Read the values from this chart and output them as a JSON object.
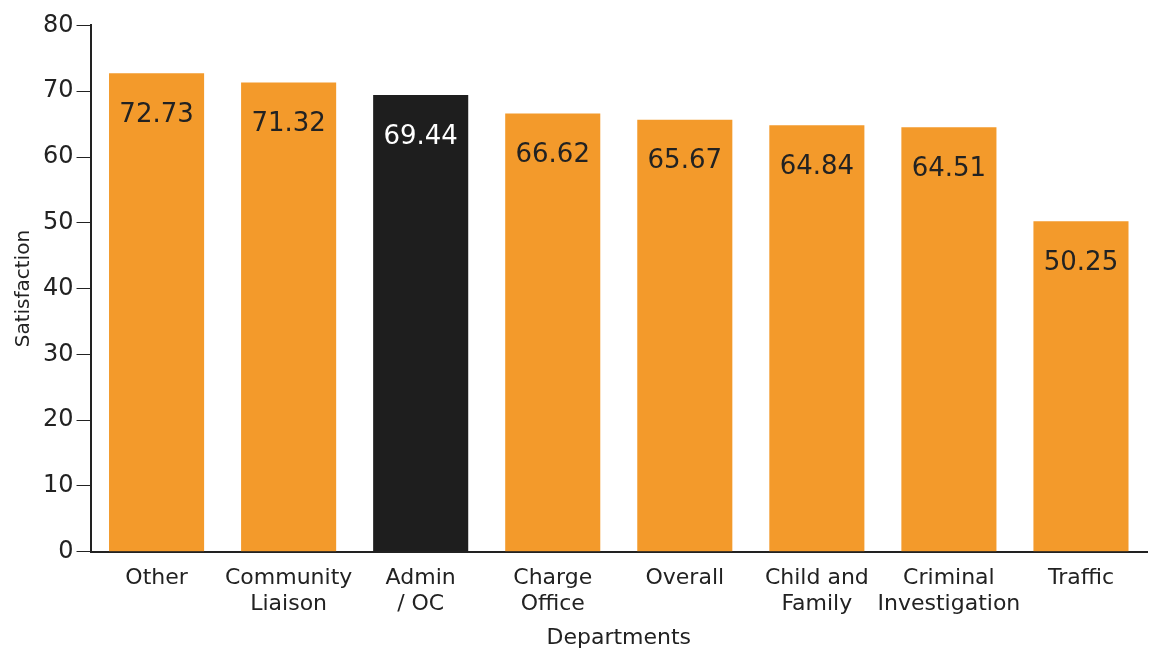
{
  "chart_data": {
    "type": "bar",
    "xlabel": "Departments",
    "ylabel": "Satisfaction",
    "categories": [
      "Other",
      "Community\nLiaison",
      "Admin\n/ OC",
      "Charge\nOffice",
      "Overall",
      "Child and\nFamily",
      "Criminal\nInvestigation",
      "Traffic"
    ],
    "values": [
      72.73,
      71.32,
      69.44,
      66.62,
      65.67,
      64.84,
      64.51,
      50.25
    ],
    "colors": [
      "#f39a2b",
      "#f39a2b",
      "#1e1e1e",
      "#f39a2b",
      "#f39a2b",
      "#f39a2b",
      "#f39a2b",
      "#f39a2b"
    ],
    "ylim": [
      0,
      80
    ],
    "yticks": [
      0,
      10,
      20,
      30,
      40,
      50,
      60,
      70,
      80
    ],
    "grid": false,
    "legend": false,
    "data_labels": true
  }
}
